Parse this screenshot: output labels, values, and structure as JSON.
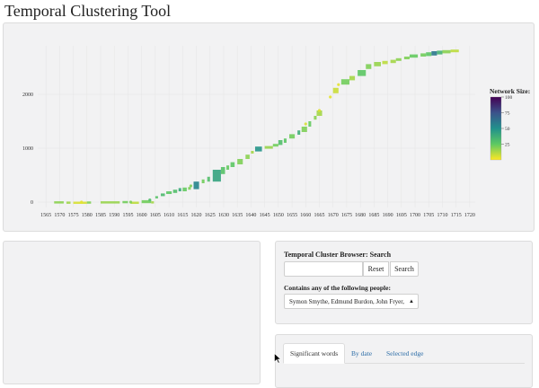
{
  "app": {
    "title": "Temporal Clustering Tool"
  },
  "chart_data": {
    "type": "scatter",
    "title": "",
    "xlabel": "",
    "ylabel": "",
    "xlim": [
      1562,
      1722
    ],
    "ylim": [
      -100,
      2900
    ],
    "x_ticks": [
      "1565",
      "1570",
      "1575",
      "1580",
      "1585",
      "1590",
      "1595",
      "1600",
      "1605",
      "1610",
      "1615",
      "1620",
      "1625",
      "1630",
      "1635",
      "1640",
      "1645",
      "1650",
      "1655",
      "1660",
      "1665",
      "1670",
      "1675",
      "1680",
      "1685",
      "1690",
      "1695",
      "1700",
      "1705",
      "1710",
      "1715",
      "1720"
    ],
    "y_ticks": [
      "0",
      "1000",
      "2000"
    ],
    "legend_title": "Network Size:",
    "legend_ticks": [
      "100",
      "75",
      "50",
      "25"
    ],
    "legend_range": [
      0,
      100
    ],
    "colors": {
      "low": "#d8e219",
      "mid": "#21918c",
      "high": "#440154"
    },
    "segments": [
      {
        "x0": 1568,
        "x1": 1571.5,
        "y0": -25,
        "y1": 15,
        "size": 18
      },
      {
        "x0": 1572.5,
        "x1": 1574,
        "y0": -15,
        "y1": 10,
        "size": 15
      },
      {
        "x0": 1575,
        "x1": 1580,
        "y0": -8,
        "y1": 8,
        "size": 6
      },
      {
        "x0": 1580,
        "x1": 1581.5,
        "y0": -15,
        "y1": 12,
        "size": 20
      },
      {
        "x0": 1585,
        "x1": 1592,
        "y0": -15,
        "y1": 15,
        "size": 16
      },
      {
        "x0": 1593,
        "x1": 1595,
        "y0": -20,
        "y1": 20,
        "size": 22
      },
      {
        "x0": 1596,
        "x1": 1599,
        "y0": -8,
        "y1": 8,
        "size": 10
      },
      {
        "x0": 1600,
        "x1": 1603.5,
        "y0": -20,
        "y1": 35,
        "size": 22
      },
      {
        "x0": 1603.5,
        "x1": 1604.5,
        "y0": -15,
        "y1": 15,
        "size": 14
      },
      {
        "x0": 1605,
        "x1": 1606,
        "y0": 70,
        "y1": 110,
        "size": 28
      },
      {
        "x0": 1607,
        "x1": 1608.5,
        "y0": 110,
        "y1": 160,
        "size": 32
      },
      {
        "x0": 1609,
        "x1": 1611,
        "y0": 150,
        "y1": 200,
        "size": 26
      },
      {
        "x0": 1611.5,
        "x1": 1613,
        "y0": 170,
        "y1": 230,
        "size": 30
      },
      {
        "x0": 1613.5,
        "x1": 1614.5,
        "y0": 200,
        "y1": 260,
        "size": 40
      },
      {
        "x0": 1615,
        "x1": 1616.5,
        "y0": 200,
        "y1": 270,
        "size": 24
      },
      {
        "x0": 1617,
        "x1": 1618,
        "y0": 230,
        "y1": 280,
        "size": 20
      },
      {
        "x0": 1619,
        "x1": 1621,
        "y0": 240,
        "y1": 380,
        "size": 55
      },
      {
        "x0": 1622,
        "x1": 1623,
        "y0": 350,
        "y1": 420,
        "size": 22
      },
      {
        "x0": 1624,
        "x1": 1625,
        "y0": 380,
        "y1": 470,
        "size": 30
      },
      {
        "x0": 1626,
        "x1": 1629,
        "y0": 380,
        "y1": 600,
        "size": 42
      },
      {
        "x0": 1629,
        "x1": 1630.5,
        "y0": 520,
        "y1": 650,
        "size": 28
      },
      {
        "x0": 1631,
        "x1": 1632,
        "y0": 600,
        "y1": 680,
        "size": 24
      },
      {
        "x0": 1632.5,
        "x1": 1634,
        "y0": 650,
        "y1": 740,
        "size": 26
      },
      {
        "x0": 1635,
        "x1": 1637,
        "y0": 700,
        "y1": 800,
        "size": 20
      },
      {
        "x0": 1638,
        "x1": 1639.5,
        "y0": 800,
        "y1": 880,
        "size": 18
      },
      {
        "x0": 1640,
        "x1": 1641,
        "y0": 900,
        "y1": 950,
        "size": 14
      },
      {
        "x0": 1641.5,
        "x1": 1644,
        "y0": 940,
        "y1": 1030,
        "size": 48
      },
      {
        "x0": 1645,
        "x1": 1648,
        "y0": 990,
        "y1": 1040,
        "size": 16
      },
      {
        "x0": 1648,
        "x1": 1650,
        "y0": 1030,
        "y1": 1080,
        "size": 22
      },
      {
        "x0": 1650,
        "x1": 1651.5,
        "y0": 1060,
        "y1": 1150,
        "size": 30
      },
      {
        "x0": 1652,
        "x1": 1653,
        "y0": 1100,
        "y1": 1180,
        "size": 26
      },
      {
        "x0": 1654,
        "x1": 1656,
        "y0": 1180,
        "y1": 1260,
        "size": 22
      },
      {
        "x0": 1657,
        "x1": 1658,
        "y0": 1250,
        "y1": 1330,
        "size": 38
      },
      {
        "x0": 1658.5,
        "x1": 1660.5,
        "y0": 1300,
        "y1": 1400,
        "size": 20
      },
      {
        "x0": 1661,
        "x1": 1662,
        "y0": 1400,
        "y1": 1500,
        "size": 24
      },
      {
        "x0": 1663,
        "x1": 1664,
        "y0": 1530,
        "y1": 1600,
        "size": 18
      },
      {
        "x0": 1664,
        "x1": 1666,
        "y0": 1600,
        "y1": 1700,
        "size": 14
      },
      {
        "x0": 1670,
        "x1": 1672,
        "y0": 2020,
        "y1": 2120,
        "size": 8
      },
      {
        "x0": 1673,
        "x1": 1676,
        "y0": 2180,
        "y1": 2280,
        "size": 22
      },
      {
        "x0": 1676,
        "x1": 1678,
        "y0": 2260,
        "y1": 2340,
        "size": 14
      },
      {
        "x0": 1679,
        "x1": 1682,
        "y0": 2340,
        "y1": 2450,
        "size": 26
      },
      {
        "x0": 1682,
        "x1": 1684,
        "y0": 2470,
        "y1": 2560,
        "size": 20
      },
      {
        "x0": 1685,
        "x1": 1687.5,
        "y0": 2520,
        "y1": 2600,
        "size": 16
      },
      {
        "x0": 1688,
        "x1": 1690,
        "y0": 2560,
        "y1": 2620,
        "size": 10
      },
      {
        "x0": 1691,
        "x1": 1693,
        "y0": 2580,
        "y1": 2640,
        "size": 14
      },
      {
        "x0": 1693,
        "x1": 1695,
        "y0": 2620,
        "y1": 2670,
        "size": 18
      },
      {
        "x0": 1696,
        "x1": 1698,
        "y0": 2650,
        "y1": 2700,
        "size": 20
      },
      {
        "x0": 1698,
        "x1": 1701,
        "y0": 2680,
        "y1": 2740,
        "size": 24
      },
      {
        "x0": 1702,
        "x1": 1704,
        "y0": 2700,
        "y1": 2760,
        "size": 22
      },
      {
        "x0": 1704,
        "x1": 1706,
        "y0": 2710,
        "y1": 2780,
        "size": 26
      },
      {
        "x0": 1706,
        "x1": 1708,
        "y0": 2720,
        "y1": 2800,
        "size": 60
      },
      {
        "x0": 1708,
        "x1": 1710,
        "y0": 2740,
        "y1": 2810,
        "size": 35
      },
      {
        "x0": 1710,
        "x1": 1713,
        "y0": 2760,
        "y1": 2820,
        "size": 18
      },
      {
        "x0": 1713,
        "x1": 1716,
        "y0": 2780,
        "y1": 2830,
        "size": 10
      }
    ],
    "points": [
      {
        "x": 1578,
        "y": 0,
        "size": 4
      },
      {
        "x": 1596,
        "y": 0,
        "size": 20
      },
      {
        "x": 1603,
        "y": 40,
        "size": 30
      },
      {
        "x": 1618,
        "y": 300,
        "size": 20
      },
      {
        "x": 1660,
        "y": 1450,
        "size": 6
      },
      {
        "x": 1665,
        "y": 1700,
        "size": 5
      },
      {
        "x": 1669,
        "y": 1950,
        "size": 4
      },
      {
        "x": 1672,
        "y": 2180,
        "size": 4
      }
    ]
  },
  "search": {
    "heading": "Temporal Cluster Browser: Search",
    "input_value": "",
    "reset_label": "Reset",
    "search_label": "Search",
    "people_label": "Contains any of the following people:",
    "people_selected": "Symon Smythe, Edmund Burdon, John Fryer, l"
  },
  "tabs": [
    {
      "label": "Significant words"
    },
    {
      "label": "By date"
    },
    {
      "label": "Selected edge"
    }
  ]
}
